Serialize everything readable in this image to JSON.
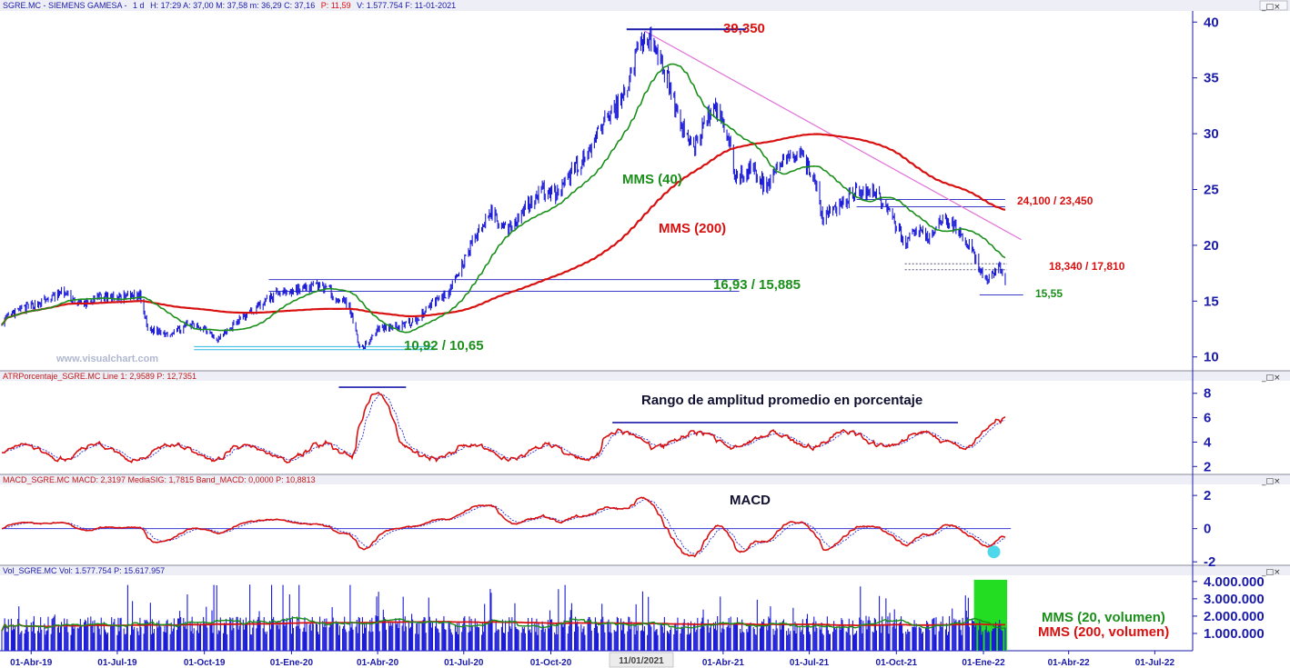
{
  "chart_data": [
    {
      "type": "candlestick",
      "header": {
        "symbol": "SGRE.MC - SIEMENS GAMESA -",
        "period": "1 d",
        "stats": "H: 17:29  A: 37,00  M: 37,58  m: 36,29  C: 37,16",
        "change": "P: 11,59",
        "tail": "V: 1.577.754  F: 11-01-2021"
      },
      "watermark": "www.visualchart.com",
      "y_ticks": [
        "10",
        "15",
        "20",
        "25",
        "30",
        "35",
        "40"
      ],
      "ylim": [
        9,
        41
      ],
      "x_ticks": [
        "01-Abr-19",
        "01-Jul-19",
        "01-Oct-19",
        "01-Ene-20",
        "01-Abr-20",
        "01-Jul-20",
        "01-Oct-20",
        "01-Abr-21",
        "01-Jul-21",
        "01-Oct-21",
        "01-Ene-22",
        "01-Abr-22",
        "01-Jul-22"
      ],
      "cursor_date": "11/01/2021",
      "price_path": [
        [
          "2019-03-01",
          13.2
        ],
        [
          "2019-03-20",
          14.2
        ],
        [
          "2019-04-15",
          15.0
        ],
        [
          "2019-05-05",
          15.8
        ],
        [
          "2019-05-25",
          14.6
        ],
        [
          "2019-06-15",
          15.4
        ],
        [
          "2019-07-05",
          15.3
        ],
        [
          "2019-07-25",
          15.5
        ],
        [
          "2019-08-02",
          12.5
        ],
        [
          "2019-08-25",
          12.1
        ],
        [
          "2019-09-15",
          12.9
        ],
        [
          "2019-10-01",
          12.6
        ],
        [
          "2019-10-15",
          11.6
        ],
        [
          "2019-11-05",
          13.2
        ],
        [
          "2019-12-01",
          14.8
        ],
        [
          "2019-12-20",
          15.8
        ],
        [
          "2020-01-15",
          16.1
        ],
        [
          "2020-02-01",
          16.5
        ],
        [
          "2020-02-20",
          15.2
        ],
        [
          "2020-03-02",
          14.6
        ],
        [
          "2020-03-12",
          11.2
        ],
        [
          "2020-03-18",
          10.9
        ],
        [
          "2020-04-01",
          12.5
        ],
        [
          "2020-04-20",
          12.8
        ],
        [
          "2020-05-10",
          13.1
        ],
        [
          "2020-05-25",
          14.6
        ],
        [
          "2020-06-15",
          15.8
        ],
        [
          "2020-07-01",
          18.5
        ],
        [
          "2020-07-15",
          21.0
        ],
        [
          "2020-07-30",
          23.0
        ],
        [
          "2020-08-15",
          21.4
        ],
        [
          "2020-09-01",
          23.0
        ],
        [
          "2020-09-20",
          25.0
        ],
        [
          "2020-10-10",
          24.5
        ],
        [
          "2020-10-25",
          27.0
        ],
        [
          "2020-11-10",
          28.0
        ],
        [
          "2020-11-25",
          31.0
        ],
        [
          "2020-12-15",
          33.0
        ],
        [
          "2021-01-08",
          39.2
        ],
        [
          "2021-01-20",
          37.0
        ],
        [
          "2021-02-01",
          35.0
        ],
        [
          "2021-02-15",
          31.0
        ],
        [
          "2021-03-01",
          28.5
        ],
        [
          "2021-03-15",
          31.5
        ],
        [
          "2021-03-25",
          32.2
        ],
        [
          "2021-04-05",
          30.0
        ],
        [
          "2021-04-15",
          26.0
        ],
        [
          "2021-05-01",
          27.0
        ],
        [
          "2021-05-15",
          25.2
        ],
        [
          "2021-06-01",
          27.5
        ],
        [
          "2021-06-20",
          28.2
        ],
        [
          "2021-07-05",
          26.5
        ],
        [
          "2021-07-15",
          22.5
        ],
        [
          "2021-08-01",
          23.5
        ],
        [
          "2021-08-20",
          25.0
        ],
        [
          "2021-09-10",
          24.8
        ],
        [
          "2021-09-25",
          22.5
        ],
        [
          "2021-10-10",
          20.3
        ],
        [
          "2021-10-25",
          21.5
        ],
        [
          "2021-11-05",
          20.5
        ],
        [
          "2021-11-20",
          22.5
        ],
        [
          "2021-12-05",
          21.5
        ],
        [
          "2021-12-20",
          19.5
        ],
        [
          "2022-01-05",
          16.5
        ],
        [
          "2022-01-12",
          17.5
        ],
        [
          "2022-01-17",
          18.6
        ],
        [
          "2022-01-24",
          16.6
        ]
      ],
      "series": [
        {
          "name": "MMS (40)",
          "color": "#1a8f1a"
        },
        {
          "name": "MMS (200)",
          "color": "#d81010"
        }
      ],
      "annotations": [
        {
          "text": "39,350",
          "color": "#d81010"
        },
        {
          "text": "16,93 / 15,885",
          "color": "#1a8f1a"
        },
        {
          "text": "10,92 / 10,65",
          "color": "#1a8f1a"
        },
        {
          "text": "24,100 / 23,450",
          "color": "#d81010"
        },
        {
          "text": "18,340 / 17,810",
          "color": "#d81010"
        },
        {
          "text": "15,55",
          "color": "#1a8f1a"
        }
      ],
      "levels": [
        39.35,
        16.93,
        15.885,
        10.92,
        10.65,
        24.1,
        23.45,
        18.34,
        17.81,
        15.55
      ]
    },
    {
      "type": "line",
      "header": "ATRPorcentaje_SGRE.MC  Line 1: 2,9589  P: 12,7351",
      "title": "Rango de amplitud promedio en porcentaje",
      "y_ticks": [
        "2",
        "4",
        "6",
        "8"
      ],
      "ylim": [
        1.5,
        8.8
      ]
    },
    {
      "type": "line",
      "header": "MACD_SGRE.MC  MACD: 2,3197  MediaSIG: 1,7815  Band_MACD: 0,0000  P: 10,8813",
      "title": "MACD",
      "y_ticks": [
        "2",
        "0",
        "-2"
      ],
      "ylim": [
        -2.1,
        2.5
      ]
    },
    {
      "type": "bar",
      "header": "Vol_SGRE.MC  Vol: 1.577.754  P: 15.617.957",
      "y_ticks": [
        "1.000.000",
        "2.000.000",
        "3.000.000",
        "4.000.000"
      ],
      "legend": [
        {
          "text": "MMS (20, volumen)",
          "color": "#1a8f1a"
        },
        {
          "text": "MMS (200, volumen)",
          "color": "#d81010"
        }
      ]
    }
  ]
}
